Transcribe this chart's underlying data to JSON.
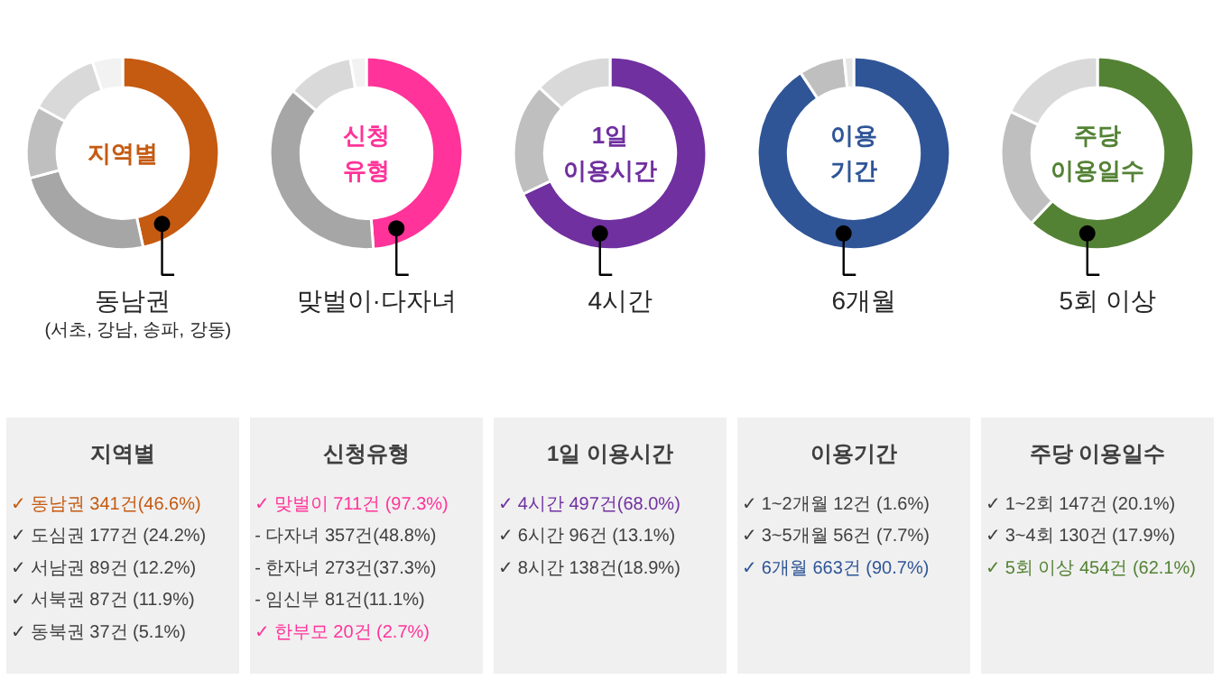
{
  "chart_data": [
    {
      "type": "donut",
      "title": "지역별",
      "categories": [
        "동남권",
        null,
        null,
        null,
        null
      ],
      "values": [
        46.6,
        24.2,
        12.2,
        11.9,
        5.1
      ],
      "colors": [
        "#c55a11",
        "#a6a6a6",
        "#bfbfbf",
        "#d9d9d9",
        "#f2f2f2"
      ],
      "annotations": [
        "(서초, 강남, 송파, 강동)"
      ]
    },
    {
      "type": "donut",
      "title": "신청\n유형",
      "categories": [
        "맞벌이·다자녀",
        null,
        null,
        null
      ],
      "values": [
        48.8,
        37.3,
        11.1,
        2.7
      ],
      "colors": [
        "#ff3399",
        "#a6a6a6",
        "#d9d9d9",
        "#f2f2f2"
      ]
    },
    {
      "type": "donut",
      "title": "1일\n이용시간",
      "categories": [
        "4시간",
        null,
        null
      ],
      "values": [
        68.0,
        18.9,
        13.1
      ],
      "colors": [
        "#7030a0",
        "#bfbfbf",
        "#d9d9d9"
      ]
    },
    {
      "type": "donut",
      "title": "이용\n기간",
      "categories": [
        "6개월",
        null,
        null
      ],
      "values": [
        90.7,
        7.7,
        1.6
      ],
      "colors": [
        "#2f5597",
        "#bfbfbf",
        "#e7e6e6"
      ]
    },
    {
      "type": "donut",
      "title": "주당\n이용일수",
      "categories": [
        "5회 이상",
        null,
        null
      ],
      "values": [
        62.1,
        20.1,
        17.9
      ],
      "colors": [
        "#548235",
        "#bfbfbf",
        "#d9d9d9"
      ]
    },
    {
      "type": "other",
      "title": "지역별",
      "annotations": [
        "✓ 동남권 341건(46.6%)",
        "✓ 도심권 177건 (24.2%)",
        "✓ 서남권 89건 (12.2%)",
        "✓ 서북권 87건 (11.9%)",
        "✓ 동북권 37건 (5.1%)"
      ],
      "colors": [
        "#c55a11",
        "#404040",
        "#404040",
        "#404040",
        "#404040"
      ]
    },
    {
      "type": "other",
      "title": "신청유형",
      "annotations": [
        "✓ 맞벌이 711건 (97.3%)",
        "  - 다자녀 357건(48.8%)",
        "  - 한자녀  273건(37.3%)",
        "  - 임신부 81건(11.1%)",
        "✓ 한부모 20건 (2.7%)"
      ],
      "colors": [
        "#ff3399",
        "#404040",
        "#404040",
        "#404040",
        "#ff3399"
      ]
    },
    {
      "type": "other",
      "title": "1일 이용시간",
      "annotations": [
        "✓ 4시간 497건(68.0%)",
        "✓ 6시간 96건 (13.1%)",
        "✓ 8시간 138건(18.9%)"
      ],
      "colors": [
        "#7030a0",
        "#404040",
        "#404040"
      ]
    },
    {
      "type": "other",
      "title": "이용기간",
      "annotations": [
        "✓ 1~2개월 12건 (1.6%)",
        "✓ 3~5개월 56건 (7.7%)",
        "✓ 6개월 663건 (90.7%)"
      ],
      "colors": [
        "#404040",
        "#404040",
        "#2f5597"
      ]
    },
    {
      "type": "other",
      "title": "주당 이용일수",
      "annotations": [
        "✓ 1~2회 147건 (20.1%)",
        "✓ 3~4회 130건 (17.9%)",
        "✓ 5회 이상 454건 (62.1%)"
      ],
      "colors": [
        "#404040",
        "#404040",
        "#548235"
      ]
    }
  ]
}
